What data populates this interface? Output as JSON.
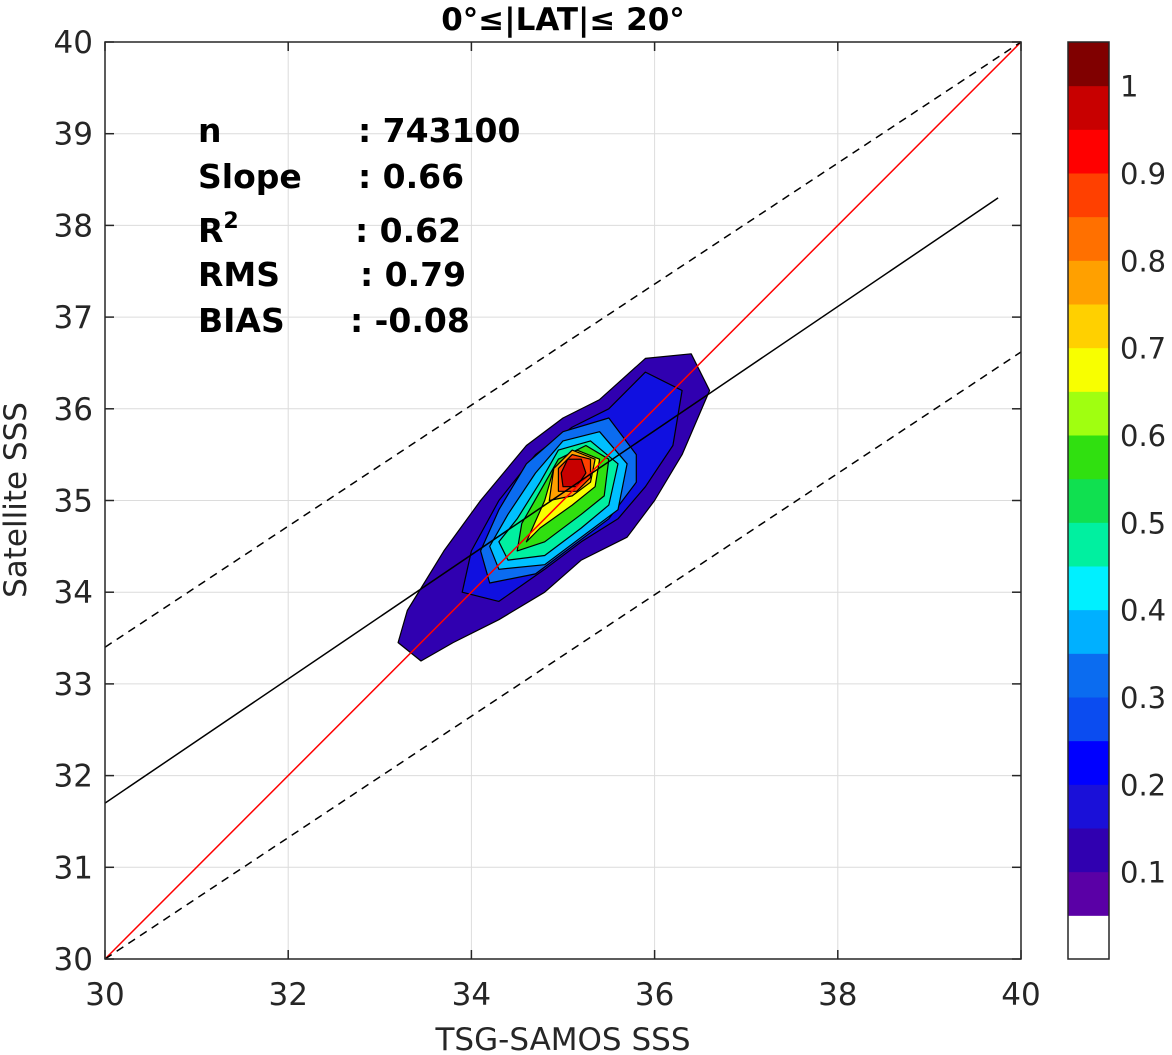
{
  "chart_data": {
    "type": "contour",
    "title": "0°≤|LAT|≤ 20°",
    "xlabel": "TSG-SAMOS SSS",
    "ylabel": "Satellite SSS",
    "xlim": [
      30,
      40
    ],
    "ylim": [
      30,
      40
    ],
    "x_ticks": [
      "30",
      "32",
      "34",
      "36",
      "38",
      "40"
    ],
    "y_ticks": [
      "30",
      "31",
      "32",
      "33",
      "34",
      "35",
      "36",
      "37",
      "38",
      "39",
      "40"
    ],
    "grid": true,
    "stats": [
      {
        "label": "n",
        "value": ": 743100"
      },
      {
        "label": "Slope",
        "value": ": 0.66"
      },
      {
        "label": "R",
        "sup": "2",
        "value": ": 0.62"
      },
      {
        "label": "RMS",
        "value": ": 0.79"
      },
      {
        "label": "BIAS",
        "value": ": -0.08"
      }
    ],
    "lines": [
      {
        "role": "one-to-one",
        "color": "#ff0000",
        "style": "solid",
        "points": [
          [
            30,
            30
          ],
          [
            40,
            40
          ]
        ]
      },
      {
        "role": "regression",
        "color": "#000000",
        "style": "solid",
        "points": [
          [
            30,
            31.7
          ],
          [
            39.75,
            38.3
          ]
        ]
      },
      {
        "role": "upper-bound",
        "color": "#000000",
        "style": "dashed",
        "points": [
          [
            30,
            33.4
          ],
          [
            40,
            40
          ]
        ]
      },
      {
        "role": "lower-bound",
        "color": "#000000",
        "style": "dashed",
        "points": [
          [
            30,
            30
          ],
          [
            40,
            36.62
          ]
        ]
      }
    ],
    "contour_center": [
      35.1,
      35.2
    ],
    "contour_levels": [
      {
        "level": 0.05,
        "color": "#3000b0",
        "ring": [
          [
            33.2,
            33.45
          ],
          [
            33.45,
            33.25
          ],
          [
            33.8,
            33.45
          ],
          [
            34.3,
            33.7
          ],
          [
            34.8,
            34.0
          ],
          [
            35.2,
            34.35
          ],
          [
            35.7,
            34.6
          ],
          [
            36.0,
            35.0
          ],
          [
            36.3,
            35.5
          ],
          [
            36.6,
            36.2
          ],
          [
            36.4,
            36.6
          ],
          [
            35.9,
            36.55
          ],
          [
            35.4,
            36.1
          ],
          [
            35.0,
            35.9
          ],
          [
            34.6,
            35.6
          ],
          [
            34.1,
            35.0
          ],
          [
            33.7,
            34.45
          ],
          [
            33.3,
            33.8
          ]
        ]
      },
      {
        "level": 0.1,
        "color": "#1010e0",
        "ring": [
          [
            33.9,
            34.0
          ],
          [
            34.3,
            33.9
          ],
          [
            34.8,
            34.25
          ],
          [
            35.2,
            34.55
          ],
          [
            35.6,
            34.8
          ],
          [
            35.9,
            35.15
          ],
          [
            36.2,
            35.6
          ],
          [
            36.3,
            36.2
          ],
          [
            35.9,
            36.4
          ],
          [
            35.5,
            36.0
          ],
          [
            35.1,
            35.8
          ],
          [
            34.7,
            35.5
          ],
          [
            34.3,
            35.0
          ],
          [
            34.0,
            34.45
          ]
        ]
      },
      {
        "level": 0.2,
        "color": "#0b6cf0",
        "ring": [
          [
            34.2,
            34.1
          ],
          [
            34.7,
            34.2
          ],
          [
            35.1,
            34.5
          ],
          [
            35.5,
            34.8
          ],
          [
            35.8,
            35.2
          ],
          [
            35.8,
            35.5
          ],
          [
            35.5,
            35.9
          ],
          [
            35.0,
            35.75
          ],
          [
            34.6,
            35.4
          ],
          [
            34.3,
            34.9
          ],
          [
            34.1,
            34.45
          ]
        ]
      },
      {
        "level": 0.3,
        "color": "#00c0ff",
        "ring": [
          [
            34.3,
            34.25
          ],
          [
            34.8,
            34.3
          ],
          [
            35.2,
            34.6
          ],
          [
            35.6,
            34.9
          ],
          [
            35.7,
            35.4
          ],
          [
            35.4,
            35.75
          ],
          [
            35.0,
            35.65
          ],
          [
            34.7,
            35.3
          ],
          [
            34.4,
            34.85
          ],
          [
            34.2,
            34.5
          ]
        ]
      },
      {
        "level": 0.4,
        "color": "#00f0a0",
        "ring": [
          [
            34.4,
            34.35
          ],
          [
            34.8,
            34.4
          ],
          [
            35.2,
            34.7
          ],
          [
            35.5,
            34.95
          ],
          [
            35.6,
            35.4
          ],
          [
            35.3,
            35.65
          ],
          [
            34.95,
            35.55
          ],
          [
            34.75,
            35.2
          ],
          [
            34.5,
            34.8
          ],
          [
            34.3,
            34.55
          ]
        ]
      },
      {
        "level": 0.5,
        "color": "#30e010",
        "ring": [
          [
            34.5,
            34.45
          ],
          [
            34.8,
            34.55
          ],
          [
            35.2,
            34.85
          ],
          [
            35.45,
            35.05
          ],
          [
            35.5,
            35.45
          ],
          [
            35.25,
            35.6
          ],
          [
            34.95,
            35.45
          ],
          [
            34.75,
            35.1
          ],
          [
            34.55,
            34.75
          ]
        ]
      },
      {
        "level": 0.6,
        "color": "#f8ff00",
        "ring": [
          [
            34.6,
            34.55
          ],
          [
            34.75,
            34.7
          ],
          [
            35.1,
            34.95
          ],
          [
            35.35,
            35.15
          ],
          [
            35.4,
            35.45
          ],
          [
            35.15,
            35.55
          ],
          [
            34.9,
            35.35
          ],
          [
            34.8,
            35.0
          ]
        ]
      },
      {
        "level": 0.7,
        "color": "#ffa000",
        "ring": [
          [
            34.85,
            35.0
          ],
          [
            35.1,
            35.05
          ],
          [
            35.3,
            35.2
          ],
          [
            35.35,
            35.45
          ],
          [
            35.1,
            35.55
          ],
          [
            34.9,
            35.35
          ]
        ]
      },
      {
        "level": 0.8,
        "color": "#ff4000",
        "ring": [
          [
            34.95,
            35.1
          ],
          [
            35.15,
            35.1
          ],
          [
            35.3,
            35.25
          ],
          [
            35.3,
            35.45
          ],
          [
            35.1,
            35.5
          ],
          [
            34.95,
            35.35
          ]
        ]
      },
      {
        "level": 0.9,
        "color": "#c80000",
        "ring": [
          [
            35.0,
            35.15
          ],
          [
            35.15,
            35.15
          ],
          [
            35.25,
            35.3
          ],
          [
            35.2,
            35.45
          ],
          [
            35.05,
            35.45
          ],
          [
            34.98,
            35.3
          ]
        ]
      }
    ],
    "colorbar": {
      "colors": [
        "#ffffff",
        "#5a00a6",
        "#3000b0",
        "#1a10d8",
        "#0000ff",
        "#0b4cf0",
        "#0b6cf0",
        "#00b0ff",
        "#00f0ff",
        "#00f0a0",
        "#10e050",
        "#30e010",
        "#a0ff10",
        "#f8ff00",
        "#ffd000",
        "#ffa000",
        "#ff7000",
        "#ff4000",
        "#ff0000",
        "#c80000",
        "#800000"
      ],
      "ticks": [
        "0.1",
        "0.2",
        "0.3",
        "0.4",
        "0.5",
        "0.6",
        "0.7",
        "0.8",
        "0.9",
        "1"
      ],
      "tick_values": [
        0.1,
        0.2,
        0.3,
        0.4,
        0.5,
        0.6,
        0.7,
        0.8,
        0.9,
        1.0
      ]
    }
  }
}
